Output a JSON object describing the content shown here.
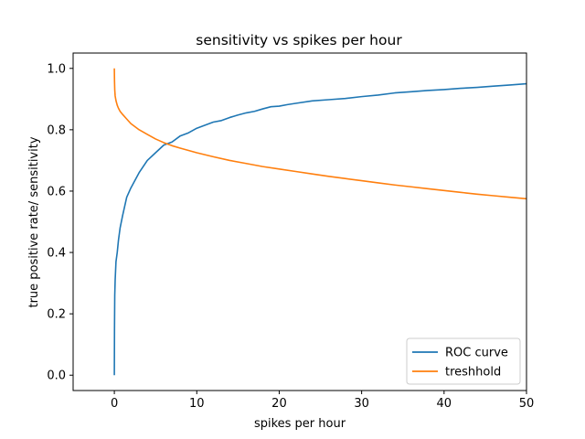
{
  "chart_data": {
    "type": "line",
    "title": "sensitivity vs spikes per hour",
    "xlabel": "spikes per hour",
    "ylabel": "true positive rate/ sensitivity",
    "xlim": [
      -5,
      50
    ],
    "ylim": [
      -0.05,
      1.05
    ],
    "x_ticks": [
      0,
      10,
      20,
      30,
      40,
      50
    ],
    "y_ticks": [
      0.0,
      0.2,
      0.4,
      0.6,
      0.8,
      1.0
    ],
    "x_tick_labels": [
      "0",
      "10",
      "20",
      "30",
      "40",
      "50"
    ],
    "y_tick_labels": [
      "0.0",
      "0.2",
      "0.4",
      "0.6",
      "0.8",
      "1.0"
    ],
    "grid": false,
    "legend_position": "lower-right",
    "series": [
      {
        "name": "ROC curve",
        "color": "#1f77b4",
        "x": [
          0,
          0.02,
          0.05,
          0.1,
          0.2,
          0.35,
          0.5,
          0.7,
          1.0,
          1.5,
          2.0,
          3.0,
          4.0,
          5.0,
          6.0,
          7.0,
          8.0,
          9.0,
          10.0,
          11.0,
          12.0,
          13.0,
          14.0,
          15.0,
          16.0,
          17.0,
          18.0,
          19.0,
          20.0,
          21.0,
          22.0,
          24.0,
          26.0,
          28.0,
          30.0,
          32.0,
          34.0,
          36.0,
          38.0,
          40.0,
          42.0,
          44.0,
          46.0,
          48.0,
          50.0
        ],
        "y": [
          0.0,
          0.15,
          0.26,
          0.31,
          0.37,
          0.4,
          0.44,
          0.48,
          0.52,
          0.58,
          0.61,
          0.66,
          0.7,
          0.725,
          0.75,
          0.76,
          0.78,
          0.79,
          0.805,
          0.815,
          0.825,
          0.83,
          0.84,
          0.848,
          0.855,
          0.86,
          0.868,
          0.875,
          0.877,
          0.882,
          0.886,
          0.894,
          0.898,
          0.902,
          0.908,
          0.913,
          0.92,
          0.924,
          0.928,
          0.931,
          0.935,
          0.938,
          0.942,
          0.946,
          0.95
        ]
      },
      {
        "name": "treshhold",
        "color": "#ff7f0e",
        "x": [
          0,
          0.02,
          0.05,
          0.1,
          0.2,
          0.35,
          0.5,
          0.7,
          1.0,
          1.5,
          2.0,
          3.0,
          4.0,
          5.0,
          6.0,
          7.0,
          8.0,
          10.0,
          12.0,
          14.0,
          16.0,
          18.0,
          20.0,
          22.0,
          24.0,
          26.0,
          28.0,
          30.0,
          32.0,
          34.0,
          36.0,
          38.0,
          40.0,
          42.0,
          44.0,
          46.0,
          48.0,
          50.0
        ],
        "y": [
          1.0,
          0.96,
          0.93,
          0.91,
          0.895,
          0.88,
          0.87,
          0.86,
          0.85,
          0.835,
          0.82,
          0.8,
          0.785,
          0.77,
          0.758,
          0.748,
          0.74,
          0.725,
          0.712,
          0.7,
          0.69,
          0.68,
          0.672,
          0.664,
          0.656,
          0.648,
          0.641,
          0.634,
          0.627,
          0.62,
          0.614,
          0.608,
          0.602,
          0.596,
          0.59,
          0.585,
          0.58,
          0.575
        ]
      }
    ]
  }
}
